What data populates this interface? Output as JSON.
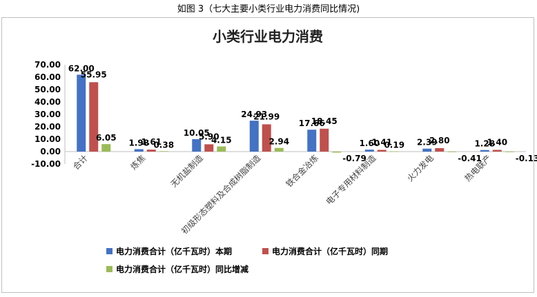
{
  "caption": "如图 3（七大主要小类行业电力消费同比情况)",
  "chart_data": {
    "type": "bar",
    "title": "小类行业电力消费",
    "categories": [
      "合计",
      "炼焦",
      "无机盐制造",
      "初级形态塑料及合成树脂制造",
      "铁合金冶炼",
      "电子专用材料制造",
      "火力发电",
      "热电联产"
    ],
    "series": [
      {
        "name": "电力消费合计（亿千瓦时）本期",
        "color": "#4472C4",
        "values": [
          62.0,
          1.98,
          10.05,
          24.93,
          17.66,
          1.6,
          2.39,
          1.28
        ]
      },
      {
        "name": "电力消费合计（亿千瓦时）同期",
        "color": "#C0504D",
        "values": [
          55.95,
          1.61,
          5.9,
          21.99,
          18.45,
          1.41,
          2.8,
          1.4
        ]
      },
      {
        "name": "电力消费合计（亿千瓦时）同比增减",
        "color": "#9BBB59",
        "values": [
          6.05,
          0.38,
          4.15,
          2.94,
          -0.79,
          0.19,
          -0.41,
          -0.13
        ]
      }
    ],
    "ylim": [
      -10,
      70
    ],
    "yticks": [
      "70.00",
      "60.00",
      "50.00",
      "40.00",
      "30.00",
      "20.00",
      "10.00",
      "0.00",
      "-10.00"
    ],
    "grid": false,
    "legend": "bottom-left"
  }
}
